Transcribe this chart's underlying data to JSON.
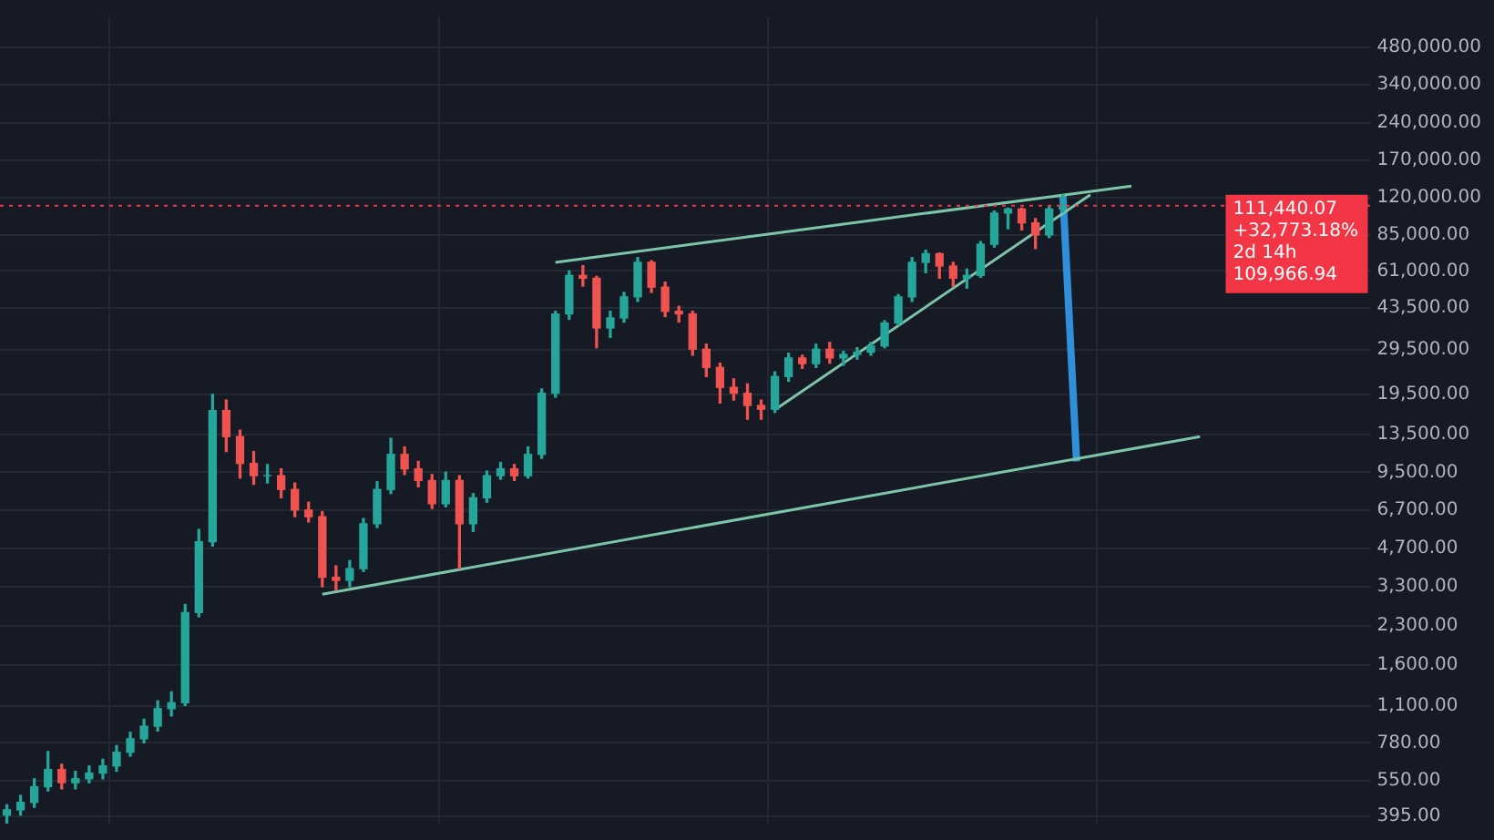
{
  "chart_data": {
    "type": "candlestick",
    "categories": [
      null,
      null,
      null,
      null,
      null,
      null,
      null,
      null,
      null,
      null,
      null,
      null,
      null,
      null,
      null,
      null,
      null,
      null,
      null,
      null,
      null,
      null,
      null,
      null,
      null,
      null,
      null,
      null,
      null,
      null,
      null,
      null,
      null,
      null,
      null,
      null,
      null,
      null,
      null,
      null,
      null,
      null,
      null,
      null,
      null,
      null,
      null,
      null,
      null,
      null,
      null,
      null,
      null,
      null,
      null,
      null,
      null,
      null,
      null,
      null,
      null,
      null,
      null,
      null,
      null,
      null,
      null,
      null,
      null,
      null,
      null,
      null,
      null,
      null,
      null,
      null,
      null,
      null,
      null,
      null,
      null,
      null,
      null,
      null,
      null,
      null,
      null,
      null,
      null,
      null,
      null,
      null,
      null,
      null,
      null,
      null,
      null,
      null,
      null,
      null
    ],
    "ohlc": [
      [
        400,
        440,
        370,
        420
      ],
      [
        420,
        480,
        400,
        450
      ],
      [
        450,
        560,
        430,
        520
      ],
      [
        520,
        720,
        500,
        610
      ],
      [
        610,
        640,
        510,
        540
      ],
      [
        540,
        600,
        510,
        560
      ],
      [
        560,
        630,
        540,
        590
      ],
      [
        590,
        670,
        560,
        630
      ],
      [
        630,
        760,
        600,
        715
      ],
      [
        715,
        860,
        690,
        810
      ],
      [
        810,
        970,
        780,
        910
      ],
      [
        910,
        1150,
        870,
        1070
      ],
      [
        1070,
        1250,
        1000,
        1130
      ],
      [
        1130,
        2800,
        1100,
        2600
      ],
      [
        2600,
        5600,
        2500,
        5000
      ],
      [
        5000,
        19500,
        4800,
        16800
      ],
      [
        16800,
        18500,
        11500,
        13200
      ],
      [
        13200,
        14000,
        9000,
        10300
      ],
      [
        10300,
        11500,
        8500,
        9200
      ],
      [
        9200,
        10200,
        8600,
        9200
      ],
      [
        9200,
        9800,
        7500,
        8100
      ],
      [
        8100,
        8600,
        6300,
        6700
      ],
      [
        6700,
        7200,
        6000,
        6300
      ],
      [
        6300,
        6600,
        3300,
        3600
      ],
      [
        3600,
        4000,
        3200,
        3500
      ],
      [
        3500,
        4200,
        3300,
        3900
      ],
      [
        3900,
        6200,
        3800,
        5900
      ],
      [
        5900,
        8700,
        5700,
        8100
      ],
      [
        8100,
        13000,
        7800,
        11200
      ],
      [
        11200,
        12000,
        9300,
        9800
      ],
      [
        9800,
        10500,
        8300,
        8800
      ],
      [
        8800,
        9300,
        6800,
        7100
      ],
      [
        7100,
        9500,
        6900,
        8800
      ],
      [
        8800,
        9200,
        3900,
        5900
      ],
      [
        5900,
        7800,
        5500,
        7500
      ],
      [
        7500,
        9600,
        7200,
        9200
      ],
      [
        9200,
        10400,
        8900,
        9800
      ],
      [
        9800,
        10200,
        8800,
        9200
      ],
      [
        9200,
        12000,
        9000,
        11200
      ],
      [
        11200,
        20500,
        10800,
        19700
      ],
      [
        19700,
        42000,
        19000,
        41000
      ],
      [
        41000,
        61000,
        39000,
        58500
      ],
      [
        58500,
        64000,
        53000,
        57000
      ],
      [
        57000,
        58000,
        30000,
        36000
      ],
      [
        36000,
        42000,
        33000,
        39500
      ],
      [
        39500,
        50000,
        38000,
        48000
      ],
      [
        48000,
        69000,
        46000,
        66000
      ],
      [
        66000,
        67000,
        50000,
        52500
      ],
      [
        52500,
        55000,
        40000,
        42000
      ],
      [
        42000,
        44000,
        38000,
        41000
      ],
      [
        41000,
        42000,
        28000,
        29600
      ],
      [
        29600,
        31000,
        23000,
        25000
      ],
      [
        25000,
        26000,
        18000,
        20800
      ],
      [
        20800,
        22500,
        18500,
        19700
      ],
      [
        19700,
        21500,
        15500,
        17600
      ],
      [
        17600,
        18500,
        15500,
        17000
      ],
      [
        17000,
        24000,
        16500,
        23000
      ],
      [
        23000,
        28500,
        22000,
        27300
      ],
      [
        27300,
        28000,
        24800,
        25900
      ],
      [
        25900,
        31000,
        25000,
        29600
      ],
      [
        29600,
        31500,
        26000,
        27300
      ],
      [
        27300,
        29000,
        25500,
        28200
      ],
      [
        28200,
        30000,
        27000,
        28800
      ],
      [
        28800,
        31500,
        28000,
        30500
      ],
      [
        30500,
        38500,
        30000,
        37700
      ],
      [
        37700,
        49000,
        37000,
        48000
      ],
      [
        48000,
        69000,
        46000,
        66000
      ],
      [
        66000,
        73800,
        60000,
        71500
      ],
      [
        71500,
        72000,
        57000,
        63800
      ],
      [
        63800,
        66000,
        53000,
        57000
      ],
      [
        57000,
        62000,
        52000,
        58500
      ],
      [
        58500,
        80000,
        57500,
        78000
      ],
      [
        78000,
        106000,
        76000,
        104000
      ],
      [
        104000,
        109000,
        90000,
        108000
      ],
      [
        108000,
        109000,
        89000,
        95000
      ],
      [
        95000,
        99000,
        75000,
        85000
      ],
      [
        85000,
        110000,
        83000,
        108000
      ],
      [
        108000,
        123000,
        105000,
        111440.07
      ],
      null,
      null,
      null,
      null,
      null,
      null,
      null,
      null,
      null,
      null,
      null,
      null,
      null,
      null,
      null,
      null,
      null,
      null,
      null,
      null,
      null,
      null
    ],
    "colors": [
      "#26a69a",
      "#26a69a",
      "#26a69a",
      "#26a69a",
      "#ef5350",
      "#26a69a",
      "#26a69a",
      "#26a69a",
      "#26a69a",
      "#26a69a",
      "#26a69a",
      "#26a69a",
      "#26a69a",
      "#26a69a",
      "#26a69a",
      "#26a69a",
      "#ef5350",
      "#ef5350",
      "#ef5350",
      "#26a69a",
      "#ef5350",
      "#ef5350",
      "#ef5350",
      "#ef5350",
      "#ef5350",
      "#26a69a",
      "#26a69a",
      "#26a69a",
      "#26a69a",
      "#ef5350",
      "#ef5350",
      "#ef5350",
      "#26a69a",
      "#ef5350",
      "#26a69a",
      "#26a69a",
      "#26a69a",
      "#ef5350",
      "#26a69a",
      "#26a69a",
      "#26a69a",
      "#26a69a",
      "#ef5350",
      "#ef5350",
      "#26a69a",
      "#26a69a",
      "#26a69a",
      "#ef5350",
      "#ef5350",
      "#ef5350",
      "#ef5350",
      "#ef5350",
      "#ef5350",
      "#ef5350",
      "#ef5350",
      "#ef5350",
      "#26a69a",
      "#26a69a",
      "#ef5350",
      "#26a69a",
      "#ef5350",
      "#26a69a",
      "#26a69a",
      "#26a69a",
      "#26a69a",
      "#26a69a",
      "#26a69a",
      "#26a69a",
      "#ef5350",
      "#ef5350",
      "#26a69a",
      "#26a69a",
      "#26a69a",
      "#26a69a",
      "#ef5350",
      "#ef5350",
      "#26a69a",
      "#26a69a",
      null,
      null,
      null,
      null,
      null,
      null,
      null,
      null,
      null,
      null,
      null,
      null,
      null,
      null,
      null,
      null,
      null,
      null,
      null,
      null,
      null,
      null
    ],
    "series": [
      {
        "type": "line",
        "color": "#7cc5a8",
        "values": [
          null,
          null,
          null,
          null,
          null,
          null,
          null,
          null,
          null,
          null,
          null,
          null,
          null,
          null,
          null,
          null,
          null,
          null,
          null,
          null,
          null,
          null,
          null,
          null,
          null,
          null,
          null,
          null,
          null,
          null,
          null,
          null,
          null,
          null,
          null,
          null,
          null,
          null,
          null,
          null,
          66000,
          null,
          null,
          null,
          null,
          null,
          null,
          null,
          null,
          null,
          null,
          null,
          null,
          null,
          null,
          null,
          null,
          null,
          null,
          null,
          null,
          null,
          null,
          null,
          null,
          null,
          null,
          null,
          null,
          null,
          null,
          null,
          null,
          null,
          null,
          null,
          null,
          null,
          null,
          null,
          null,
          null,
          133600,
          null,
          null,
          null,
          null,
          null,
          null,
          null,
          null,
          null,
          null,
          null,
          null,
          null,
          null,
          null,
          null,
          null
        ]
      },
      {
        "type": "line",
        "color": "#7cc5a8",
        "values": [
          null,
          null,
          null,
          null,
          null,
          null,
          null,
          null,
          null,
          null,
          null,
          null,
          null,
          null,
          null,
          null,
          null,
          null,
          null,
          null,
          null,
          null,
          null,
          3080,
          null,
          null,
          null,
          null,
          null,
          null,
          null,
          null,
          null,
          null,
          null,
          null,
          null,
          null,
          null,
          null,
          null,
          null,
          null,
          null,
          null,
          null,
          null,
          null,
          null,
          null,
          null,
          null,
          null,
          null,
          null,
          null,
          null,
          null,
          null,
          null,
          null,
          null,
          null,
          null,
          null,
          null,
          null,
          null,
          null,
          null,
          null,
          null,
          null,
          null,
          null,
          null,
          null,
          null,
          null,
          null,
          null,
          null,
          null,
          null,
          null,
          null,
          null,
          13200,
          null,
          null,
          null,
          null,
          null,
          null,
          null,
          null,
          null,
          null,
          null,
          null
        ]
      },
      {
        "type": "line",
        "color": "#7cc5a8",
        "values": [
          null,
          null,
          null,
          null,
          null,
          null,
          null,
          null,
          null,
          null,
          null,
          null,
          null,
          null,
          null,
          null,
          null,
          null,
          null,
          null,
          null,
          null,
          null,
          null,
          null,
          null,
          null,
          null,
          null,
          null,
          null,
          null,
          null,
          null,
          null,
          null,
          null,
          null,
          null,
          null,
          null,
          null,
          null,
          null,
          null,
          null,
          null,
          null,
          null,
          null,
          null,
          null,
          null,
          null,
          null,
          null,
          16900,
          null,
          null,
          null,
          null,
          null,
          null,
          null,
          null,
          null,
          null,
          null,
          null,
          null,
          null,
          null,
          null,
          null,
          null,
          null,
          null,
          null,
          null,
          123300,
          null,
          null,
          null,
          null,
          null,
          null,
          null,
          null,
          null,
          null,
          null,
          null,
          null,
          null,
          null,
          null,
          null,
          null,
          null,
          null
        ]
      },
      {
        "type": "line",
        "color": "#2f8fd8",
        "values": [
          null,
          null,
          null,
          null,
          null,
          null,
          null,
          null,
          null,
          null,
          null,
          null,
          null,
          null,
          null,
          null,
          null,
          null,
          null,
          null,
          null,
          null,
          null,
          null,
          null,
          null,
          null,
          null,
          null,
          null,
          null,
          null,
          null,
          null,
          null,
          null,
          null,
          null,
          null,
          null,
          null,
          null,
          null,
          null,
          null,
          null,
          null,
          null,
          null,
          null,
          null,
          null,
          null,
          null,
          null,
          null,
          null,
          null,
          null,
          null,
          null,
          null,
          null,
          null,
          null,
          null,
          null,
          null,
          null,
          null,
          null,
          null,
          null,
          null,
          null,
          null,
          null,
          123000,
          10500,
          null,
          null,
          null,
          null,
          null,
          null,
          null,
          null,
          null,
          null,
          null,
          null,
          null,
          null,
          null,
          null,
          null,
          null,
          null,
          null,
          null
        ]
      }
    ],
    "log": "y",
    "ylim": [
      370,
      640000
    ],
    "yticks": [
      {
        "value": 480000,
        "label": "480,000.00"
      },
      {
        "value": 340000,
        "label": "340,000.00"
      },
      {
        "value": 240000,
        "label": "240,000.00"
      },
      {
        "value": 170000,
        "label": "170,000.00"
      },
      {
        "value": 120000,
        "label": "120,000.00"
      },
      {
        "value": 85000,
        "label": "85,000.00"
      },
      {
        "value": 61000,
        "label": "61,000.00"
      },
      {
        "value": 43500,
        "label": "43,500.00"
      },
      {
        "value": 29500,
        "label": "29,500.00"
      },
      {
        "value": 19500,
        "label": "19,500.00"
      },
      {
        "value": 13500,
        "label": "13,500.00"
      },
      {
        "value": 9500,
        "label": "9,500.00"
      },
      {
        "value": 6700,
        "label": "6,700.00"
      },
      {
        "value": 4700,
        "label": "4,700.00"
      },
      {
        "value": 3300,
        "label": "3,300.00"
      },
      {
        "value": 2300,
        "label": "2,300.00"
      },
      {
        "value": 1600,
        "label": "1,600.00"
      },
      {
        "value": 1100,
        "label": "1,100.00"
      },
      {
        "value": 780,
        "label": "780.00"
      },
      {
        "value": 550,
        "label": "550.00"
      },
      {
        "value": 395,
        "label": "395.00"
      }
    ],
    "tick_labels": "y",
    "grid": true,
    "legend": false,
    "marker": "none",
    "line_style": "solid",
    "ref_lines": [
      {
        "axis": "y",
        "value": 111440.07,
        "label": "111,440.07",
        "color": "#f23645",
        "line_style": "dotted"
      }
    ],
    "annotations": [
      "+32,773.18%",
      "2d 14h",
      "109,966.94"
    ]
  }
}
